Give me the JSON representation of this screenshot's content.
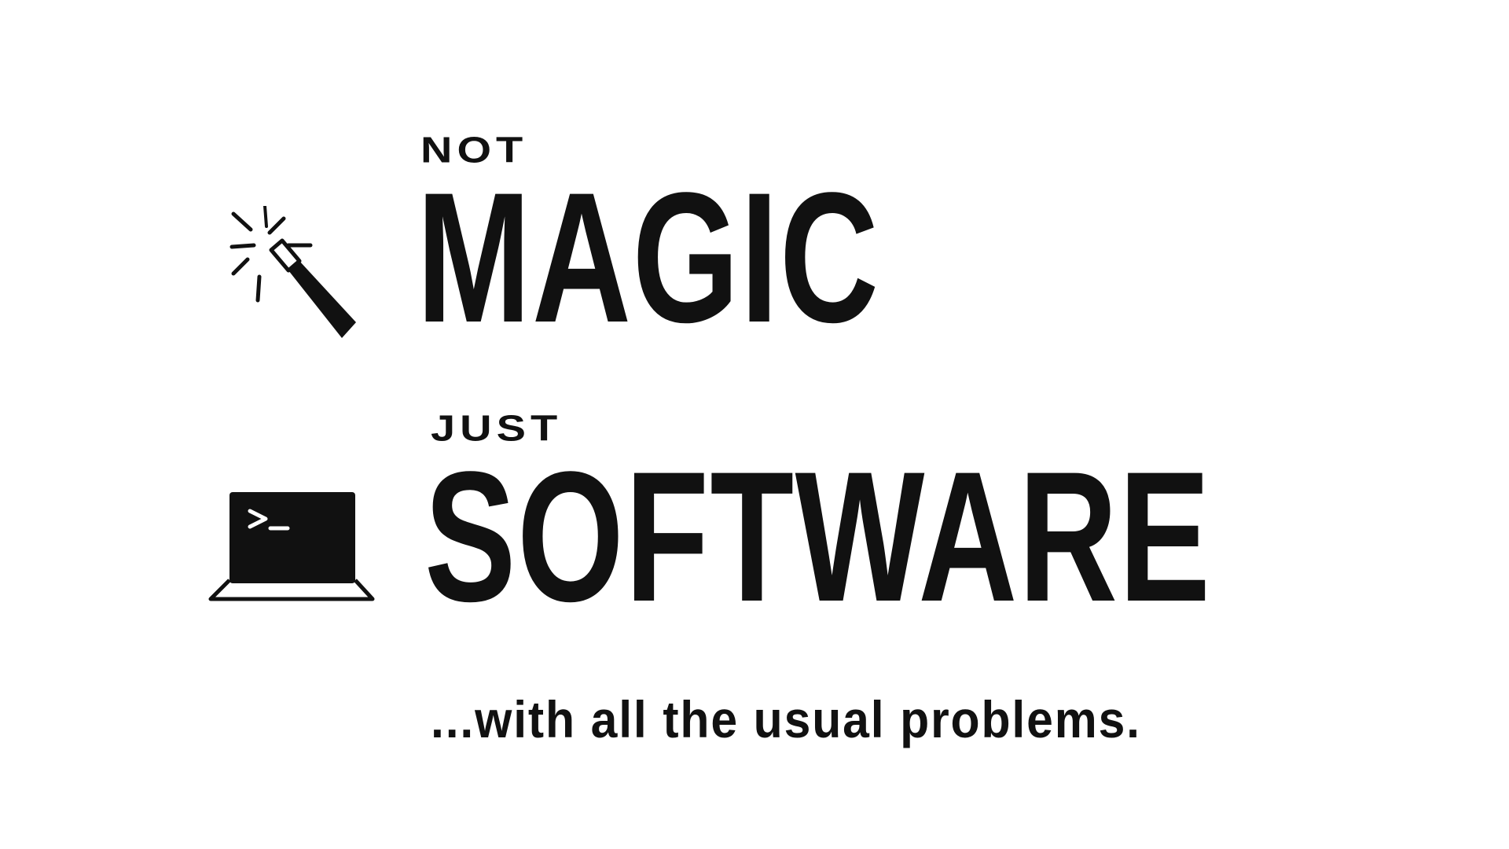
{
  "slide": {
    "line1_small": "NOT",
    "line1_big": "MAGIC",
    "line2_small": "JUST",
    "line2_big": "SOFTWARE",
    "tagline": "...with all the usual problems."
  },
  "icons": {
    "top": "magic-wand-icon",
    "bottom": "terminal-laptop-icon"
  },
  "colors": {
    "ink": "#111111",
    "background": "#ffffff"
  }
}
